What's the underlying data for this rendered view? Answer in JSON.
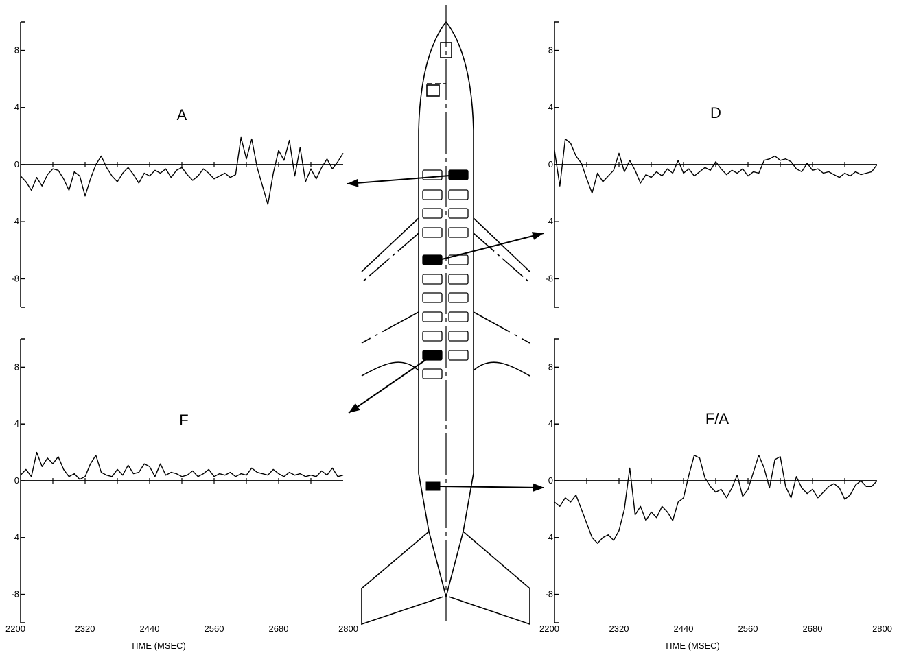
{
  "chart_data": [
    {
      "type": "line",
      "panel": "A",
      "title": "A",
      "xlabel": "",
      "ylabel": "",
      "xlim": [
        2200,
        2800
      ],
      "ylim": [
        -10,
        10
      ],
      "yticks": [
        8,
        4,
        0,
        -4,
        -8
      ],
      "x": [
        2200,
        2210,
        2220,
        2230,
        2240,
        2250,
        2260,
        2270,
        2280,
        2290,
        2300,
        2310,
        2320,
        2330,
        2340,
        2350,
        2360,
        2370,
        2380,
        2390,
        2400,
        2410,
        2420,
        2430,
        2440,
        2450,
        2460,
        2470,
        2480,
        2490,
        2500,
        2510,
        2520,
        2530,
        2540,
        2550,
        2560,
        2570,
        2580,
        2590,
        2600,
        2610,
        2620,
        2630,
        2640,
        2650,
        2660,
        2670,
        2680,
        2690,
        2700,
        2710,
        2720,
        2730,
        2740,
        2750,
        2760,
        2770,
        2780,
        2790,
        2800
      ],
      "series": [
        {
          "values": [
            -0.8,
            -1.2,
            -1.8,
            -0.9,
            -1.5,
            -0.7,
            -0.3,
            -0.4,
            -1.0,
            -1.8,
            -0.5,
            -0.8,
            -2.2,
            -1.0,
            0.0,
            0.6,
            -0.2,
            -0.8,
            -1.2,
            -0.6,
            -0.2,
            -0.7,
            -1.3,
            -0.6,
            -0.8,
            -0.4,
            -0.6,
            -0.3,
            -0.9,
            -0.4,
            -0.2,
            -0.7,
            -1.1,
            -0.8,
            -0.3,
            -0.6,
            -1.0,
            -0.8,
            -0.6,
            -0.9,
            -0.7,
            1.9,
            0.4,
            1.8,
            -0.2,
            -1.5,
            -2.8,
            -0.6,
            1.0,
            0.3,
            1.7,
            -0.8,
            1.2,
            -1.2,
            -0.3,
            -1.0,
            -0.2,
            0.4,
            -0.3,
            0.2,
            0.8
          ]
        }
      ]
    },
    {
      "type": "line",
      "panel": "D",
      "title": "D",
      "xlabel": "",
      "ylabel": "",
      "xlim": [
        2200,
        2800
      ],
      "ylim": [
        -10,
        10
      ],
      "yticks": [
        8,
        4,
        0,
        -4,
        -8
      ],
      "x": [
        2200,
        2210,
        2220,
        2230,
        2240,
        2250,
        2260,
        2270,
        2280,
        2290,
        2300,
        2310,
        2320,
        2330,
        2340,
        2350,
        2360,
        2370,
        2380,
        2390,
        2400,
        2410,
        2420,
        2430,
        2440,
        2450,
        2460,
        2470,
        2480,
        2490,
        2500,
        2510,
        2520,
        2530,
        2540,
        2550,
        2560,
        2570,
        2580,
        2590,
        2600,
        2610,
        2620,
        2630,
        2640,
        2650,
        2660,
        2670,
        2680,
        2690,
        2700,
        2710,
        2720,
        2730,
        2740,
        2750,
        2760,
        2770,
        2780,
        2790,
        2800
      ],
      "series": [
        {
          "values": [
            1.0,
            -1.5,
            1.8,
            1.5,
            0.6,
            0.1,
            -1.0,
            -2.0,
            -0.6,
            -1.2,
            -0.8,
            -0.4,
            0.8,
            -0.5,
            0.3,
            -0.4,
            -1.3,
            -0.7,
            -0.9,
            -0.5,
            -0.8,
            -0.3,
            -0.6,
            0.3,
            -0.6,
            -0.3,
            -0.8,
            -0.5,
            -0.2,
            -0.4,
            0.2,
            -0.3,
            -0.7,
            -0.4,
            -0.6,
            -0.3,
            -0.8,
            -0.5,
            -0.6,
            0.3,
            0.4,
            0.6,
            0.3,
            0.4,
            0.2,
            -0.3,
            -0.5,
            0.1,
            -0.4,
            -0.3,
            -0.6,
            -0.5,
            -0.7,
            -0.9,
            -0.6,
            -0.8,
            -0.5,
            -0.7,
            -0.6,
            -0.5,
            0.0
          ]
        }
      ]
    },
    {
      "type": "line",
      "panel": "F",
      "title": "F",
      "xlabel": "TIME (MSEC)",
      "ylabel": "",
      "xlim": [
        2200,
        2800
      ],
      "ylim": [
        -10,
        10
      ],
      "xticks": [
        2200,
        2320,
        2440,
        2560,
        2680,
        2800
      ],
      "yticks": [
        8,
        4,
        0,
        -4,
        -8
      ],
      "x": [
        2200,
        2210,
        2220,
        2230,
        2240,
        2250,
        2260,
        2270,
        2280,
        2290,
        2300,
        2310,
        2320,
        2330,
        2340,
        2350,
        2360,
        2370,
        2380,
        2390,
        2400,
        2410,
        2420,
        2430,
        2440,
        2450,
        2460,
        2470,
        2480,
        2490,
        2500,
        2510,
        2520,
        2530,
        2540,
        2550,
        2560,
        2570,
        2580,
        2590,
        2600,
        2610,
        2620,
        2630,
        2640,
        2650,
        2660,
        2670,
        2680,
        2690,
        2700,
        2710,
        2720,
        2730,
        2740,
        2750,
        2760,
        2770,
        2780,
        2790,
        2800
      ],
      "series": [
        {
          "values": [
            0.4,
            0.8,
            0.3,
            2.0,
            1.0,
            1.6,
            1.2,
            1.7,
            0.8,
            0.3,
            0.5,
            0.1,
            0.3,
            1.2,
            1.8,
            0.6,
            0.4,
            0.3,
            0.8,
            0.4,
            1.1,
            0.5,
            0.6,
            1.2,
            1.0,
            0.3,
            1.2,
            0.4,
            0.6,
            0.5,
            0.3,
            0.4,
            0.7,
            0.3,
            0.5,
            0.8,
            0.3,
            0.5,
            0.4,
            0.6,
            0.3,
            0.5,
            0.4,
            0.9,
            0.6,
            0.5,
            0.4,
            0.8,
            0.5,
            0.3,
            0.6,
            0.4,
            0.5,
            0.3,
            0.4,
            0.3,
            0.7,
            0.4,
            0.9,
            0.3,
            0.4
          ]
        }
      ]
    },
    {
      "type": "line",
      "panel": "F/A",
      "title": "F/A",
      "xlabel": "TIME (MSEC)",
      "ylabel": "",
      "xlim": [
        2200,
        2800
      ],
      "ylim": [
        -10,
        10
      ],
      "xticks": [
        2200,
        2320,
        2440,
        2560,
        2680,
        2800
      ],
      "yticks": [
        8,
        4,
        0,
        -4,
        -8
      ],
      "x": [
        2200,
        2210,
        2220,
        2230,
        2240,
        2250,
        2260,
        2270,
        2280,
        2290,
        2300,
        2310,
        2320,
        2330,
        2340,
        2350,
        2360,
        2370,
        2380,
        2390,
        2400,
        2410,
        2420,
        2430,
        2440,
        2450,
        2460,
        2470,
        2480,
        2490,
        2500,
        2510,
        2520,
        2530,
        2540,
        2550,
        2560,
        2570,
        2580,
        2590,
        2600,
        2610,
        2620,
        2630,
        2640,
        2650,
        2660,
        2670,
        2680,
        2690,
        2700,
        2710,
        2720,
        2730,
        2740,
        2750,
        2760,
        2770,
        2780,
        2790,
        2800
      ],
      "series": [
        {
          "values": [
            -1.5,
            -1.8,
            -1.2,
            -1.5,
            -1.0,
            -2.0,
            -3.0,
            -4.0,
            -4.4,
            -4.0,
            -3.8,
            -4.2,
            -3.5,
            -2.0,
            0.9,
            -2.4,
            -1.8,
            -2.8,
            -2.2,
            -2.6,
            -1.8,
            -2.2,
            -2.8,
            -1.5,
            -1.2,
            0.4,
            1.8,
            1.6,
            0.2,
            -0.4,
            -0.8,
            -0.6,
            -1.2,
            -0.5,
            0.4,
            -1.1,
            -0.6,
            0.6,
            1.8,
            0.9,
            -0.5,
            1.5,
            1.7,
            -0.4,
            -1.2,
            0.3,
            -0.5,
            -0.9,
            -0.6,
            -1.2,
            -0.8,
            -0.4,
            -0.2,
            -0.5,
            -1.3,
            -1.0,
            -0.3,
            0.0,
            -0.4,
            -0.4,
            0.0
          ]
        }
      ]
    }
  ]
}
